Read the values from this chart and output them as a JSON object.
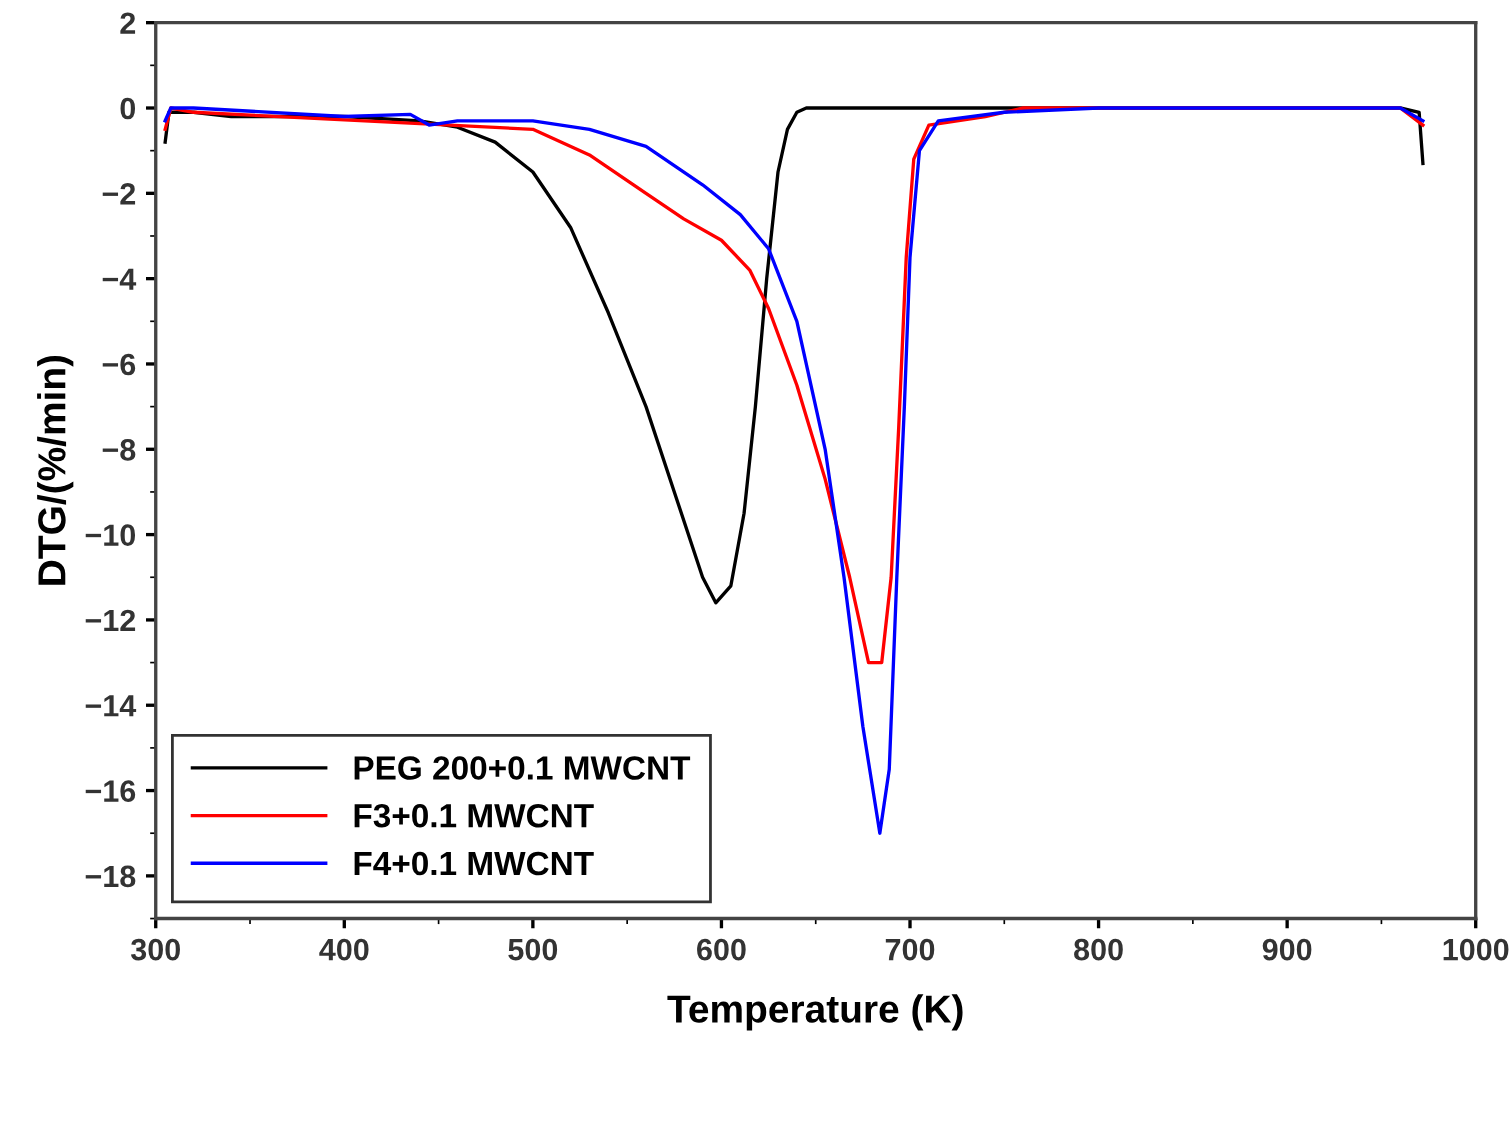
{
  "chart_data": {
    "type": "line",
    "xlabel": "Temperature (K)",
    "ylabel": "DTG/(%/min)",
    "xlim": [
      300,
      1000
    ],
    "xticks": [
      300,
      400,
      500,
      600,
      700,
      800,
      900,
      1000
    ],
    "ylim": [
      -19,
      2
    ],
    "yticks": [
      2,
      0,
      -2,
      -4,
      -6,
      -8,
      -10,
      -12,
      -14,
      -16,
      -18
    ],
    "grid": false,
    "legend": "bottom left",
    "marker": "none",
    "line_style": "solid",
    "series": [
      {
        "name": "PEG 200+0.1 MWCNT",
        "color": "#000000",
        "x": [
          305,
          307,
          320,
          340,
          400,
          440,
          460,
          480,
          500,
          520,
          540,
          560,
          575,
          590,
          597,
          605,
          612,
          618,
          624,
          630,
          635,
          640,
          645,
          700,
          800,
          960,
          970,
          972
        ],
        "values": [
          -0.8,
          -0.1,
          -0.1,
          -0.2,
          -0.2,
          -0.3,
          -0.45,
          -0.8,
          -1.5,
          -2.8,
          -4.8,
          -7,
          -9,
          -11,
          -11.6,
          -11.2,
          -9.5,
          -7,
          -4,
          -1.5,
          -0.5,
          -0.1,
          0,
          0,
          0,
          0,
          -0.1,
          -1.3
        ]
      },
      {
        "name": "F3+0.1 MWCNT",
        "color": "#ff0000",
        "x": [
          305,
          308,
          320,
          500,
          530,
          560,
          580,
          600,
          615,
          625,
          640,
          655,
          668,
          678,
          685,
          690,
          694,
          698,
          702,
          710,
          740,
          760,
          800,
          960,
          972
        ],
        "values": [
          -0.5,
          0,
          -0.1,
          -0.5,
          -1.1,
          -2,
          -2.6,
          -3.1,
          -3.8,
          -4.7,
          -6.5,
          -8.7,
          -11,
          -13,
          -13,
          -11,
          -7.5,
          -3.5,
          -1.2,
          -0.4,
          -0.2,
          0,
          0,
          0,
          -0.4
        ]
      },
      {
        "name": "F4+0.1 MWCNT",
        "color": "#0000ff",
        "x": [
          305,
          308,
          320,
          400,
          435,
          445,
          460,
          500,
          530,
          560,
          590,
          610,
          625,
          640,
          655,
          665,
          675,
          684,
          689,
          693,
          697,
          700,
          705,
          715,
          750,
          800,
          960,
          972
        ],
        "values": [
          -0.3,
          0,
          0,
          -0.2,
          -0.15,
          -0.4,
          -0.3,
          -0.3,
          -0.5,
          -0.9,
          -1.8,
          -2.5,
          -3.3,
          -5,
          -8,
          -11,
          -14.5,
          -17,
          -15.5,
          -11,
          -7,
          -3.5,
          -1,
          -0.3,
          -0.1,
          0,
          0,
          -0.3
        ]
      }
    ]
  }
}
